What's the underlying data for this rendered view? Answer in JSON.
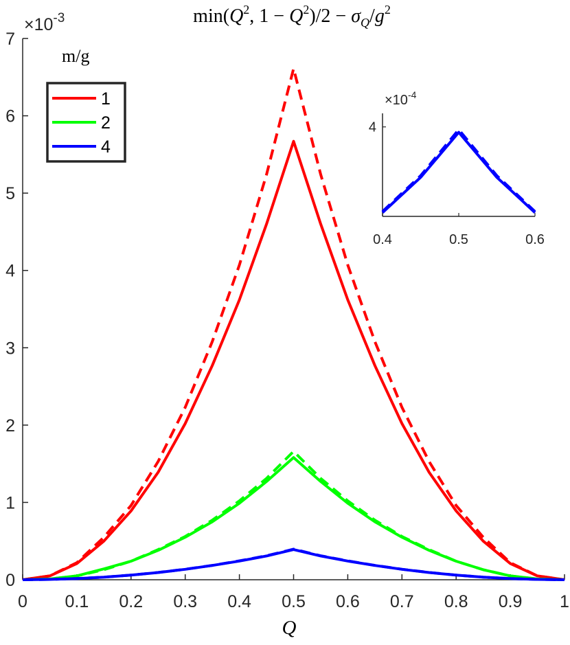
{
  "chart_data": [
    {
      "type": "line",
      "title_parts": {
        "pre": "min(",
        "q1": "Q",
        "sup1": "2",
        "mid": ", 1 − ",
        "q2": "Q",
        "sup2": "2",
        "post": ")/2 − ",
        "sigma": "σ",
        "sigma_sub": "Q",
        "slash": "/",
        "g": "g",
        "sup3": "2"
      },
      "xlabel": "Q",
      "ylabel": "",
      "xlim": [
        0,
        1
      ],
      "ylim": [
        0,
        0.007
      ],
      "y_exponent": "×10",
      "y_exponent_power": "-3",
      "x_ticks": [
        "0",
        "0.1",
        "0.2",
        "0.3",
        "0.4",
        "0.5",
        "0.6",
        "0.7",
        "0.8",
        "0.9",
        "1"
      ],
      "x_tick_values": [
        0,
        0.1,
        0.2,
        0.3,
        0.4,
        0.5,
        0.6,
        0.7,
        0.8,
        0.9,
        1
      ],
      "y_ticks": [
        "0",
        "1",
        "2",
        "3",
        "4",
        "5",
        "6",
        "7"
      ],
      "y_tick_values": [
        0,
        0.001,
        0.002,
        0.003,
        0.004,
        0.005,
        0.006,
        0.007
      ],
      "legend_title": "m/g",
      "legend_position": "top-left",
      "x": [
        0,
        0.05,
        0.1,
        0.15,
        0.2,
        0.25,
        0.3,
        0.35,
        0.4,
        0.45,
        0.5,
        0.55,
        0.6,
        0.65,
        0.7,
        0.75,
        0.8,
        0.85,
        0.9,
        0.95,
        1
      ],
      "series": [
        {
          "name": "1",
          "style": "solid",
          "color": "#ff0000",
          "in_legend": true,
          "values": [
            0,
            5e-05,
            0.00021,
            0.0005,
            0.00089,
            0.00139,
            0.00202,
            0.00277,
            0.00362,
            0.0046,
            0.00567,
            0.0046,
            0.00362,
            0.00277,
            0.00202,
            0.00139,
            0.00089,
            0.0005,
            0.00021,
            5e-05,
            0
          ]
        },
        {
          "name": "1",
          "style": "dashed",
          "color": "#ff0000",
          "in_legend": false,
          "values": [
            0,
            5e-05,
            0.00022,
            0.00055,
            0.00096,
            0.00153,
            0.00223,
            0.00308,
            0.00407,
            0.00524,
            0.00661,
            0.00524,
            0.00407,
            0.00308,
            0.00223,
            0.00153,
            0.00096,
            0.00055,
            0.00022,
            5e-05,
            0
          ]
        },
        {
          "name": "2",
          "style": "solid",
          "color": "#00ff00",
          "in_legend": true,
          "values": [
            0,
            1e-05,
            5e-05,
            0.00014,
            0.00024,
            0.00038,
            0.00055,
            0.00075,
            0.00099,
            0.00127,
            0.00158,
            0.00127,
            0.00099,
            0.00075,
            0.00055,
            0.00038,
            0.00024,
            0.00013,
            5e-05,
            1e-05,
            0
          ]
        },
        {
          "name": "2",
          "style": "dashed",
          "color": "#00ff00",
          "in_legend": false,
          "values": [
            0,
            1e-05,
            5e-05,
            0.00013,
            0.00024,
            0.00039,
            0.00056,
            0.00077,
            0.00102,
            0.00131,
            0.00166,
            0.00131,
            0.00102,
            0.00077,
            0.00056,
            0.00039,
            0.00024,
            0.00013,
            5e-05,
            1e-05,
            0
          ]
        },
        {
          "name": "4",
          "style": "solid",
          "color": "#0000ff",
          "in_legend": true,
          "values": [
            0,
            4e-06,
            1.5e-05,
            3.3e-05,
            6e-05,
            9.3e-05,
            0.000135,
            0.000185,
            0.000242,
            0.000307,
            0.00039,
            0.000307,
            0.000242,
            0.000185,
            0.000135,
            9.3e-05,
            6e-05,
            3.3e-05,
            1.5e-05,
            4e-06,
            0
          ]
        },
        {
          "name": "4",
          "style": "dashed",
          "color": "#0000ff",
          "in_legend": false,
          "values": [
            0,
            4e-06,
            1.5e-05,
            3.4e-05,
            6e-05,
            9.4e-05,
            0.000136,
            0.000186,
            0.000244,
            0.00031,
            0.000395,
            0.00031,
            0.000244,
            0.000186,
            0.000136,
            9.4e-05,
            6e-05,
            3.4e-05,
            1.5e-05,
            4e-06,
            0
          ]
        }
      ]
    },
    {
      "type": "line",
      "title": "inset",
      "xlim": [
        0.4,
        0.6
      ],
      "ylim": [
        0.000235,
        0.000425
      ],
      "x_ticks": [
        "0.4",
        "0.5",
        "0.6"
      ],
      "x_tick_values": [
        0.4,
        0.5,
        0.6
      ],
      "y_ticks": [
        "4"
      ],
      "y_tick_values": [
        0.0004
      ],
      "y_exponent": "×10",
      "y_exponent_power": "-4",
      "x": [
        0.4,
        0.45,
        0.5,
        0.55,
        0.6
      ],
      "series": [
        {
          "name": "4",
          "style": "solid",
          "color": "#0000ff",
          "values": [
            0.000242,
            0.000307,
            0.00039,
            0.000307,
            0.000242
          ]
        },
        {
          "name": "4",
          "style": "dashed",
          "color": "#0000ff",
          "values": [
            0.000244,
            0.00031,
            0.000395,
            0.00031,
            0.000244
          ]
        }
      ]
    }
  ]
}
